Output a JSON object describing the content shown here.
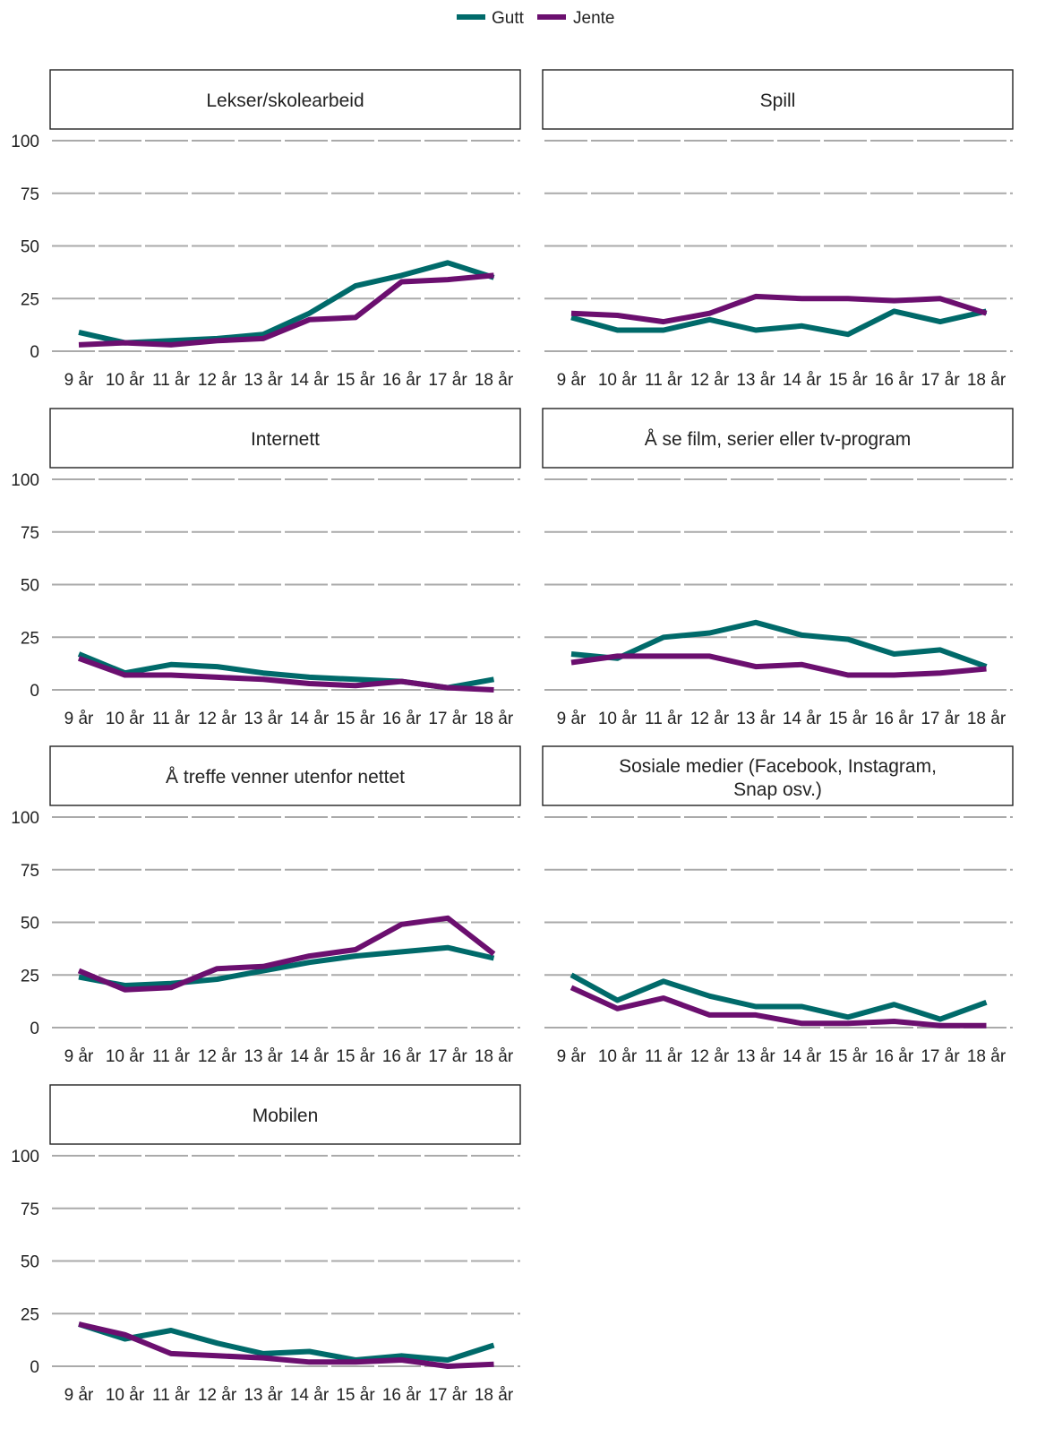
{
  "chart_data": {
    "type": "line",
    "legend": {
      "placement": "top-center",
      "entries": [
        {
          "name": "Gutt",
          "color": "#006a6a"
        },
        {
          "name": "Jente",
          "color": "#6b0f6f"
        }
      ]
    },
    "x": [
      "9 år",
      "10 år",
      "11 år",
      "12 år",
      "13 år",
      "14 år",
      "15 år",
      "16 år",
      "17 år",
      "18 år"
    ],
    "yticks": [
      "100",
      "75",
      "50",
      "25",
      "0"
    ],
    "ylim": [
      0,
      100
    ],
    "grid": "horizontal",
    "panels": [
      {
        "title": "Lekser/skolearbeid",
        "series": [
          {
            "name": "Gutt",
            "values": [
              9,
              4,
              5,
              6,
              8,
              18,
              31,
              36,
              42,
              35
            ]
          },
          {
            "name": "Jente",
            "values": [
              3,
              4,
              3,
              5,
              6,
              15,
              16,
              33,
              34,
              36
            ]
          }
        ]
      },
      {
        "title": "Spill",
        "series": [
          {
            "name": "Gutt",
            "values": [
              16,
              10,
              10,
              15,
              10,
              12,
              8,
              19,
              14,
              19
            ]
          },
          {
            "name": "Jente",
            "values": [
              18,
              17,
              14,
              18,
              26,
              25,
              25,
              24,
              25,
              18
            ]
          }
        ]
      },
      {
        "title": "Internett",
        "series": [
          {
            "name": "Gutt",
            "values": [
              17,
              8,
              12,
              11,
              8,
              6,
              5,
              4,
              1,
              5
            ]
          },
          {
            "name": "Jente",
            "values": [
              15,
              7,
              7,
              6,
              5,
              3,
              2,
              4,
              1,
              0
            ]
          }
        ]
      },
      {
        "title": "Å se film, serier eller tv-program",
        "series": [
          {
            "name": "Gutt",
            "values": [
              17,
              15,
              25,
              27,
              32,
              26,
              24,
              17,
              19,
              11
            ]
          },
          {
            "name": "Jente",
            "values": [
              13,
              16,
              16,
              16,
              11,
              12,
              7,
              7,
              8,
              10
            ]
          }
        ]
      },
      {
        "title": "Å treffe venner utenfor nettet",
        "series": [
          {
            "name": "Gutt",
            "values": [
              24,
              20,
              21,
              23,
              27,
              31,
              34,
              36,
              38,
              33
            ]
          },
          {
            "name": "Jente",
            "values": [
              27,
              18,
              19,
              28,
              29,
              34,
              37,
              49,
              52,
              35
            ]
          }
        ]
      },
      {
        "title": "Sosiale medier (Facebook, Instagram, Snap osv.)",
        "title_lines": [
          "Sosiale medier (Facebook, Instagram,",
          "Snap osv.)"
        ],
        "series": [
          {
            "name": "Gutt",
            "values": [
              25,
              13,
              22,
              15,
              10,
              10,
              5,
              11,
              4,
              12
            ]
          },
          {
            "name": "Jente",
            "values": [
              19,
              9,
              14,
              6,
              6,
              2,
              2,
              3,
              1,
              1
            ]
          }
        ]
      },
      {
        "title": "Mobilen",
        "series": [
          {
            "name": "Gutt",
            "values": [
              20,
              13,
              17,
              11,
              6,
              7,
              3,
              5,
              3,
              10
            ]
          },
          {
            "name": "Jente",
            "values": [
              20,
              15,
              6,
              5,
              4,
              2,
              2,
              3,
              0,
              1
            ]
          }
        ]
      }
    ]
  }
}
